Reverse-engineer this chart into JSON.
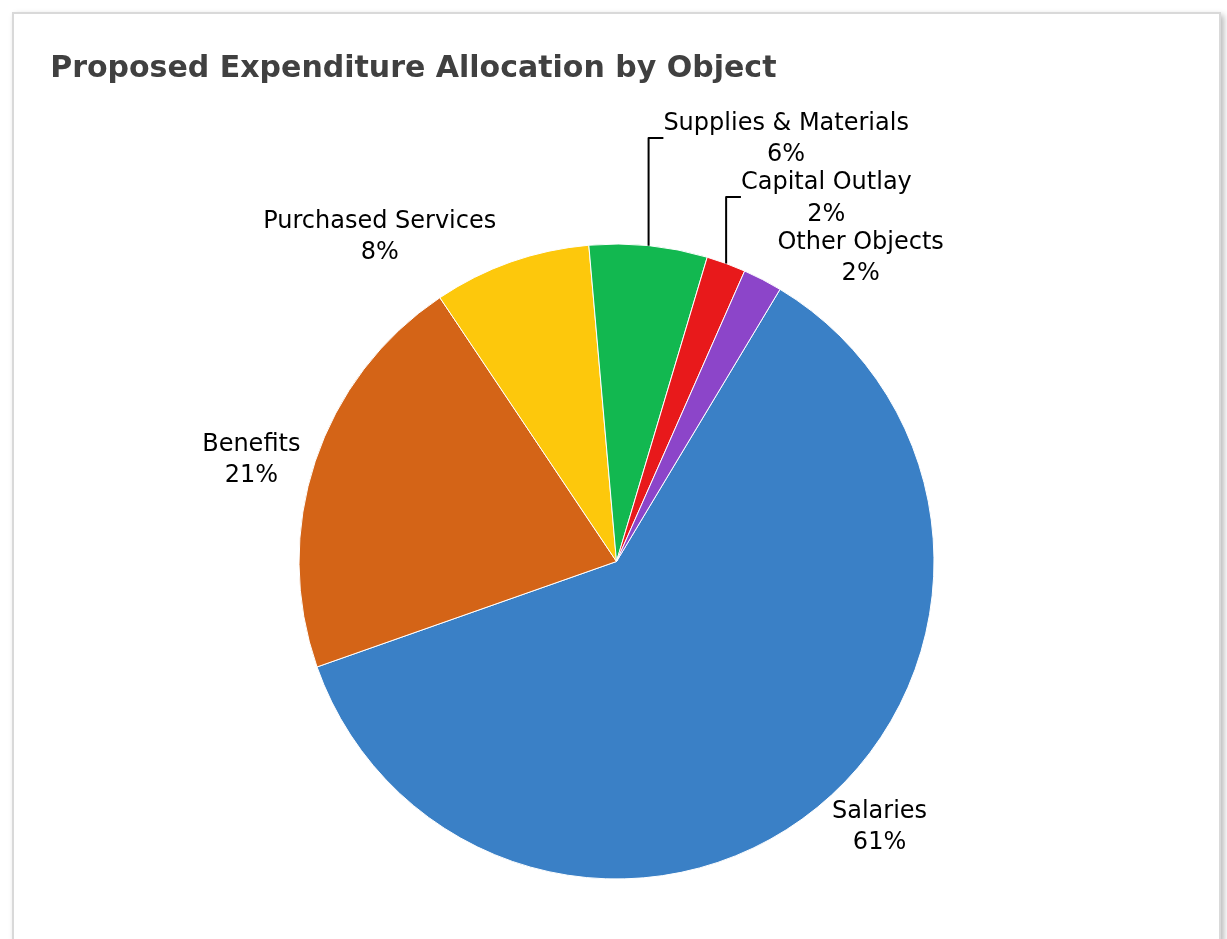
{
  "chart_data": {
    "type": "pie",
    "title": "Proposed Expenditure Allocation by Object",
    "categories": [
      "Salaries",
      "Benefits",
      "Purchased Services",
      "Supplies & Materials",
      "Capital Outlay",
      "Other Objects"
    ],
    "values": [
      61,
      21,
      8,
      6,
      2,
      2
    ],
    "value_labels": [
      "61%",
      "21%",
      "8%",
      "6%",
      "2%",
      "2%"
    ],
    "colors": [
      "#3a80c6",
      "#d46417",
      "#fdc80c",
      "#12b850",
      "#e8191b",
      "#8c45c9"
    ],
    "legend": false
  }
}
